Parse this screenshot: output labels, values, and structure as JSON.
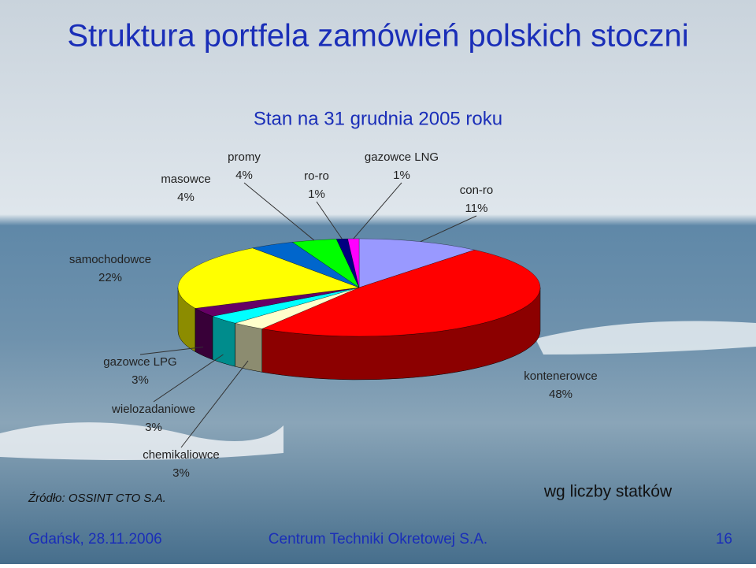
{
  "chart_data": {
    "type": "pie3d",
    "title": "Struktura portfela zamówień polskich stoczni",
    "subtitle": "Stan na 31 grudnia 2005 roku",
    "categories": [
      "con-ro",
      "kontenerowce",
      "chemikaliowce",
      "wielozadaniowe",
      "gazowce LPG",
      "samochodowce",
      "masowce",
      "promy",
      "ro-ro",
      "gazowce LNG"
    ],
    "values": [
      11,
      48,
      3,
      3,
      3,
      22,
      4,
      4,
      1,
      1
    ],
    "value_labels": [
      "11%",
      "48%",
      "3%",
      "3%",
      "3%",
      "22%",
      "4%",
      "4%",
      "1%",
      "1%"
    ],
    "colors": [
      "#9999ff",
      "#ff0000",
      "#ffffcc",
      "#00ffff",
      "#660066",
      "#ffff00",
      "#0066cc",
      "#00ff00",
      "#000080",
      "#ff00ff"
    ],
    "source": "Źródło: OSSINT CTO S.A.",
    "note": "wg liczby statków"
  },
  "footer": {
    "left": "Gdańsk, 28.11.2006",
    "center": "Centrum Techniki Okretowej S.A.",
    "page": "16"
  }
}
